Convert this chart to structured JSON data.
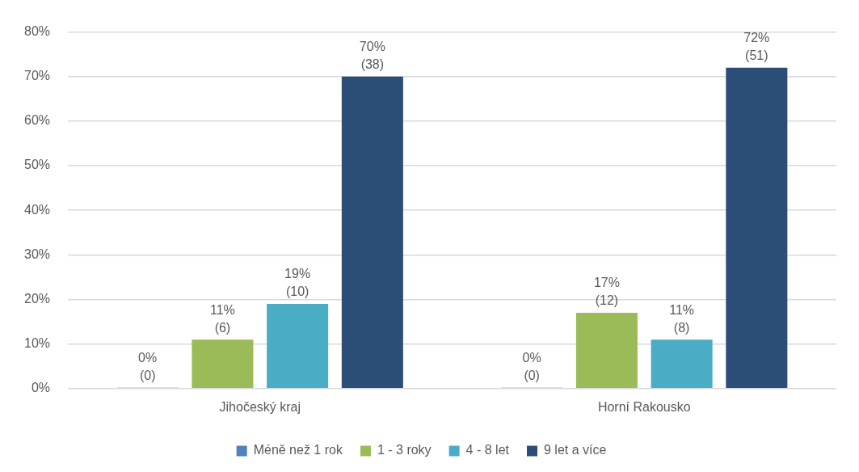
{
  "chart_data": {
    "type": "bar",
    "categories": [
      "Jihočeský kraj",
      "Horní Rakousko"
    ],
    "series": [
      {
        "name": "Méně než 1 rok",
        "color": "#4f81bd",
        "values": [
          0,
          0
        ],
        "value_labels": [
          "0%\n(0)",
          "0%\n(0)"
        ]
      },
      {
        "name": "1 - 3 roky",
        "color": "#9bbb59",
        "values": [
          11,
          17
        ],
        "value_labels": [
          "11%\n(6)",
          "17%\n(12)"
        ]
      },
      {
        "name": "4 - 8 let",
        "color": "#4bacc6",
        "values": [
          19,
          11
        ],
        "value_labels": [
          "19%\n(10)",
          "11%\n(8)"
        ]
      },
      {
        "name": "9 let a více",
        "color": "#2c4d75",
        "values": [
          70,
          72
        ],
        "value_labels": [
          "70%\n(38)",
          "72%\n(51)"
        ]
      }
    ],
    "ylim": [
      0,
      80
    ],
    "yticks": [
      {
        "value": 0,
        "label": "0%"
      },
      {
        "value": 10,
        "label": "10%"
      },
      {
        "value": 20,
        "label": "20%"
      },
      {
        "value": 30,
        "label": "30%"
      },
      {
        "value": 40,
        "label": "40%"
      },
      {
        "value": 50,
        "label": "50%"
      },
      {
        "value": 60,
        "label": "60%"
      },
      {
        "value": 70,
        "label": "70%"
      },
      {
        "value": 80,
        "label": "80%"
      }
    ],
    "grid": "y",
    "legend": "bottom"
  }
}
